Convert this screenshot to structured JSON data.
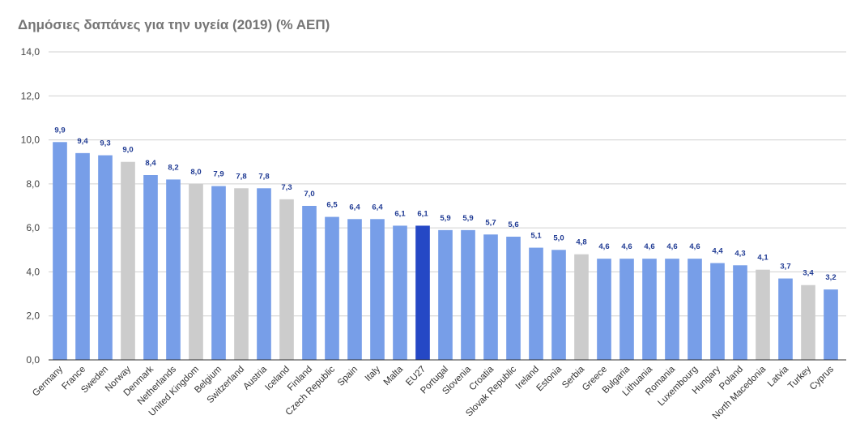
{
  "chart_data": {
    "type": "bar",
    "title": "Δημόσιες δαπάνες για την υγεία (2019) (% ΑΕΠ)",
    "xlabel": "",
    "ylabel": "",
    "ylim": [
      0,
      14
    ],
    "yticks": [
      "0,0",
      "2,0",
      "4,0",
      "6,0",
      "8,0",
      "10,0",
      "12,0",
      "14,0"
    ],
    "grid": true,
    "legend": "none",
    "categories": [
      "Germany",
      "France",
      "Sweden",
      "Norway",
      "Denmark",
      "Netherlands",
      "United Kingdom",
      "Belgium",
      "Switzerland",
      "Austria",
      "Iceland",
      "Finland",
      "Czech Republic",
      "Spain",
      "Italy",
      "Malta",
      "EU27",
      "Portugal",
      "Slovenia",
      "Croatia",
      "Slovak Republic",
      "Ireland",
      "Estonia",
      "Serbia",
      "Greece",
      "Bulgaria",
      "Lithuania",
      "Romania",
      "Luxembourg",
      "Hungary",
      "Poland",
      "North Macedonia",
      "Latvia",
      "Turkey",
      "Cyprus"
    ],
    "values": [
      9.9,
      9.4,
      9.3,
      9.0,
      8.4,
      8.2,
      8.0,
      7.9,
      7.8,
      7.8,
      7.3,
      7.0,
      6.5,
      6.4,
      6.4,
      6.1,
      6.1,
      5.9,
      5.9,
      5.7,
      5.6,
      5.1,
      5.0,
      4.8,
      4.6,
      4.6,
      4.6,
      4.6,
      4.6,
      4.4,
      4.3,
      4.1,
      3.7,
      3.4,
      3.2
    ],
    "labels": [
      "9,9",
      "9,4",
      "9,3",
      "9,0",
      "8,4",
      "8,2",
      "8,0",
      "7,9",
      "7,8",
      "7,8",
      "7,3",
      "7,0",
      "6,5",
      "6,4",
      "6,4",
      "6,1",
      "6,1",
      "5,9",
      "5,9",
      "5,7",
      "5,6",
      "5,1",
      "5,0",
      "4,8",
      "4,6",
      "4,6",
      "4,6",
      "4,6",
      "4,6",
      "4,4",
      "4,3",
      "4,1",
      "3,7",
      "3,4",
      "3,2"
    ],
    "bar_groups": [
      "eu",
      "eu",
      "eu",
      "non-eu",
      "eu",
      "eu",
      "non-eu",
      "eu",
      "non-eu",
      "eu",
      "non-eu",
      "eu",
      "eu",
      "eu",
      "eu",
      "eu",
      "eu27",
      "eu",
      "eu",
      "eu",
      "eu",
      "eu",
      "eu",
      "non-eu",
      "eu",
      "eu",
      "eu",
      "eu",
      "eu",
      "eu",
      "eu",
      "non-eu",
      "eu",
      "non-eu",
      "eu"
    ],
    "colors": {
      "eu": "#779ee8",
      "non-eu": "#cccccc",
      "eu27": "#2548c5"
    }
  }
}
